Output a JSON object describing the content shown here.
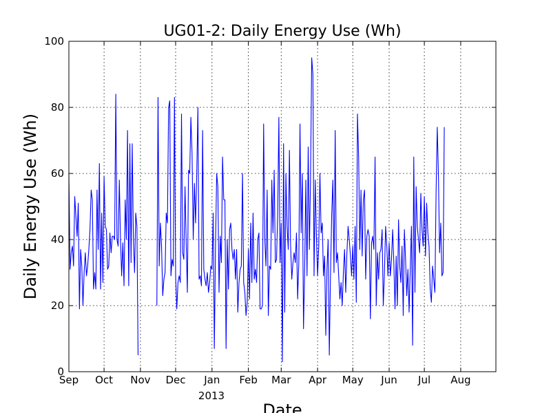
{
  "chart_data": {
    "type": "line",
    "title": "UG01-2: Daily Energy Use (Wh)",
    "xlabel": "Date",
    "ylabel": "Daily Energy Use (Wh)",
    "ylim": [
      0,
      100
    ],
    "yticks": [
      "0",
      "20",
      "40",
      "60",
      "80",
      "100"
    ],
    "xlim": [
      "2012-09-01",
      "2013-08-31"
    ],
    "xticks": [
      {
        "date": "2012-09-01",
        "label": "Sep"
      },
      {
        "date": "2012-10-01",
        "label": "Oct"
      },
      {
        "date": "2012-11-01",
        "label": "Nov"
      },
      {
        "date": "2012-12-01",
        "label": "Dec"
      },
      {
        "date": "2013-01-01",
        "label": "Jan"
      },
      {
        "date": "2013-02-01",
        "label": "Feb"
      },
      {
        "date": "2013-03-01",
        "label": "Mar"
      },
      {
        "date": "2013-04-01",
        "label": "Apr"
      },
      {
        "date": "2013-05-01",
        "label": "May"
      },
      {
        "date": "2013-06-01",
        "label": "Jun"
      },
      {
        "date": "2013-07-01",
        "label": "Jul"
      },
      {
        "date": "2013-08-01",
        "label": "Aug"
      }
    ],
    "year_label": "2013",
    "grid": true,
    "series": [
      {
        "color": "#0000ff",
        "start": "2012-09-01",
        "values": [
          60,
          31,
          36,
          38,
          32,
          53,
          47,
          41,
          51,
          19,
          37,
          32,
          20,
          30,
          36,
          29,
          32,
          37,
          43,
          55,
          52,
          25,
          30,
          25,
          55,
          37,
          63,
          25,
          48,
          27,
          59,
          44,
          43,
          31,
          32,
          42,
          36,
          41,
          41,
          40,
          84,
          40,
          38,
          58,
          40,
          29,
          39,
          26,
          52,
          40,
          73,
          26,
          69,
          33,
          69,
          40,
          30,
          48,
          44,
          5,
          null,
          null,
          null,
          null,
          null,
          null,
          null,
          null,
          null,
          null,
          null,
          null,
          null,
          null,
          null,
          20,
          83,
          32,
          45,
          38,
          23,
          28,
          30,
          48,
          45,
          80,
          82,
          29,
          34,
          32,
          83,
          29,
          19,
          27,
          29,
          27,
          78,
          36,
          34,
          56,
          39,
          24,
          61,
          60,
          77,
          66,
          40,
          57,
          45,
          60,
          80,
          28,
          29,
          26,
          73,
          31,
          28,
          26,
          30,
          24,
          27,
          32,
          31,
          48,
          7,
          38,
          60,
          56,
          24,
          41,
          33,
          65,
          52,
          52,
          7,
          40,
          25,
          43,
          45,
          37,
          34,
          37,
          28,
          37,
          18,
          27,
          31,
          32,
          60,
          27,
          24,
          17,
          21,
          37,
          22,
          45,
          27,
          48,
          28,
          31,
          27,
          40,
          42,
          19,
          19,
          20,
          75,
          40,
          32,
          55,
          17,
          32,
          31,
          58,
          42,
          61,
          33,
          34,
          48,
          77,
          33,
          45,
          3,
          69,
          18,
          60,
          44,
          37,
          67,
          38,
          28,
          33,
          36,
          33,
          42,
          22,
          33,
          75,
          42,
          60,
          13,
          31,
          58,
          29,
          68,
          37,
          58,
          95,
          90,
          29,
          58,
          41,
          29,
          38,
          60,
          42,
          45,
          29,
          35,
          11,
          31,
          40,
          5,
          29,
          47,
          58,
          30,
          73,
          33,
          36,
          29,
          22,
          27,
          20,
          30,
          37,
          24,
          36,
          44,
          40,
          35,
          29,
          38,
          28,
          44,
          21,
          78,
          65,
          37,
          55,
          35,
          52,
          55,
          28,
          41,
          43,
          41,
          16,
          39,
          41,
          37,
          65,
          20,
          36,
          28,
          36,
          37,
          43,
          20,
          30,
          44,
          38,
          29,
          39,
          29,
          34,
          43,
          33,
          19,
          35,
          20,
          46,
          32,
          27,
          38,
          17,
          43,
          34,
          23,
          31,
          18,
          31,
          44,
          8,
          65,
          24,
          56,
          44,
          40,
          36,
          54,
          43,
          38,
          53,
          35,
          51,
          42,
          38,
          25,
          21,
          32,
          28,
          24,
          54,
          74,
          60,
          36,
          45,
          29,
          30,
          74
        ]
      }
    ]
  }
}
